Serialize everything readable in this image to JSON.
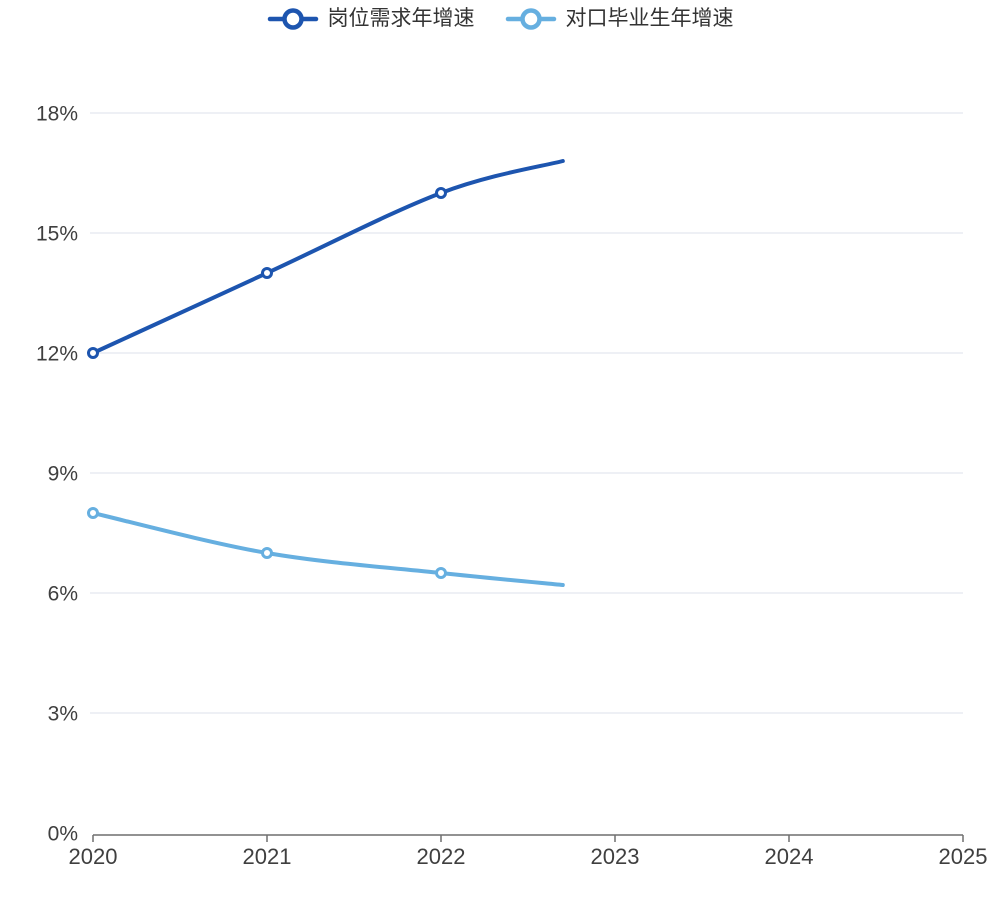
{
  "chart_data": {
    "type": "line",
    "title": "",
    "xlabel": "",
    "ylabel": "",
    "xlim": [
      2020,
      2025
    ],
    "ylim": [
      0,
      18
    ],
    "x_tick_labels": [
      "2020",
      "2021",
      "2022",
      "2023",
      "2024",
      "2025"
    ],
    "x_tick_values": [
      2020,
      2021,
      2022,
      2023,
      2024,
      2025
    ],
    "y_tick_labels": [
      "0%",
      "3%",
      "6%",
      "9%",
      "12%",
      "15%",
      "18%"
    ],
    "y_tick_values": [
      0,
      3,
      6,
      9,
      12,
      15,
      18
    ],
    "grid": true,
    "legend_position": "top-center",
    "series": [
      {
        "name": "岗位需求年增速",
        "color": "#1d55af",
        "x": [
          2020,
          2021,
          2022,
          2022.7
        ],
        "values": [
          12,
          14,
          16,
          16.8
        ],
        "marker_x": [
          2020,
          2021,
          2022
        ],
        "marker": "hollow-circle"
      },
      {
        "name": "对口毕业生年增速",
        "color": "#66afe0",
        "x": [
          2020,
          2021,
          2022,
          2022.7
        ],
        "values": [
          8,
          7,
          6.5,
          6.2
        ],
        "marker_x": [
          2020,
          2021,
          2022
        ],
        "marker": "hollow-circle"
      }
    ],
    "colors": {
      "grid_line": "#e3e8ef",
      "axis_line": "#6f6f6f",
      "axis_label": "#3f3f3f",
      "legend_text": "#333333",
      "background": "#ffffff"
    }
  }
}
